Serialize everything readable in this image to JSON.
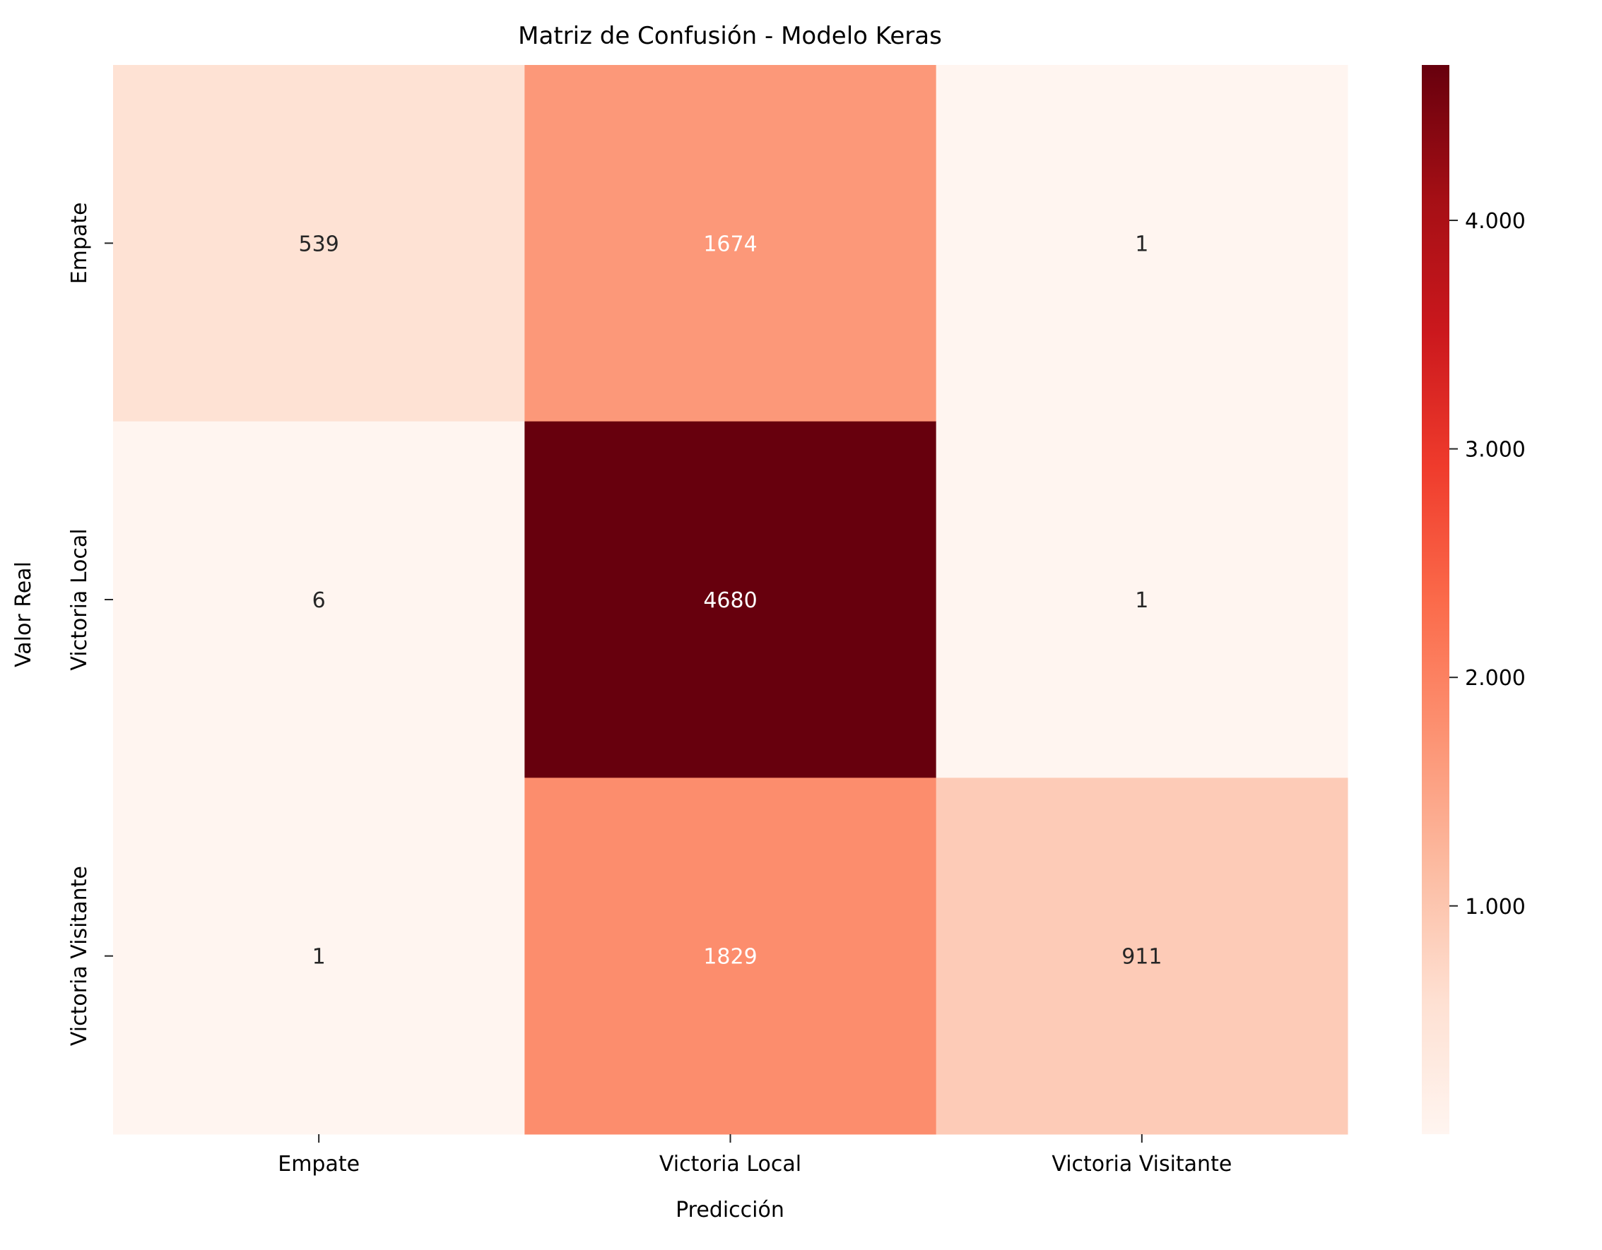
{
  "chart_data": {
    "type": "heatmap",
    "title": "Matriz de Confusión - Modelo Keras",
    "xlabel": "Predicción",
    "ylabel": "Valor Real",
    "x_categories": [
      "Empate",
      "Victoria Local",
      "Victoria Visitante"
    ],
    "y_categories": [
      "Empate",
      "Victoria Local",
      "Victoria Visitante"
    ],
    "matrix": [
      [
        539,
        1674,
        1
      ],
      [
        6,
        4680,
        1
      ],
      [
        1,
        1829,
        911
      ]
    ],
    "colormap": "Reds",
    "vmin": 1,
    "vmax": 4680,
    "colorbar_ticks": [
      1000,
      2000,
      3000,
      4000
    ],
    "colorbar_tick_labels": [
      "1.000",
      "2.000",
      "3.000",
      "4.000"
    ],
    "colors": {
      "text_dark": "#262626",
      "text_light": "#ffffff",
      "axis": "#262626",
      "ramp": [
        "#fff5f0",
        "#fee0d2",
        "#fcbba1",
        "#fc9272",
        "#fb6a4a",
        "#ef3b2c",
        "#cb181d",
        "#a50f15",
        "#67000d"
      ]
    }
  }
}
